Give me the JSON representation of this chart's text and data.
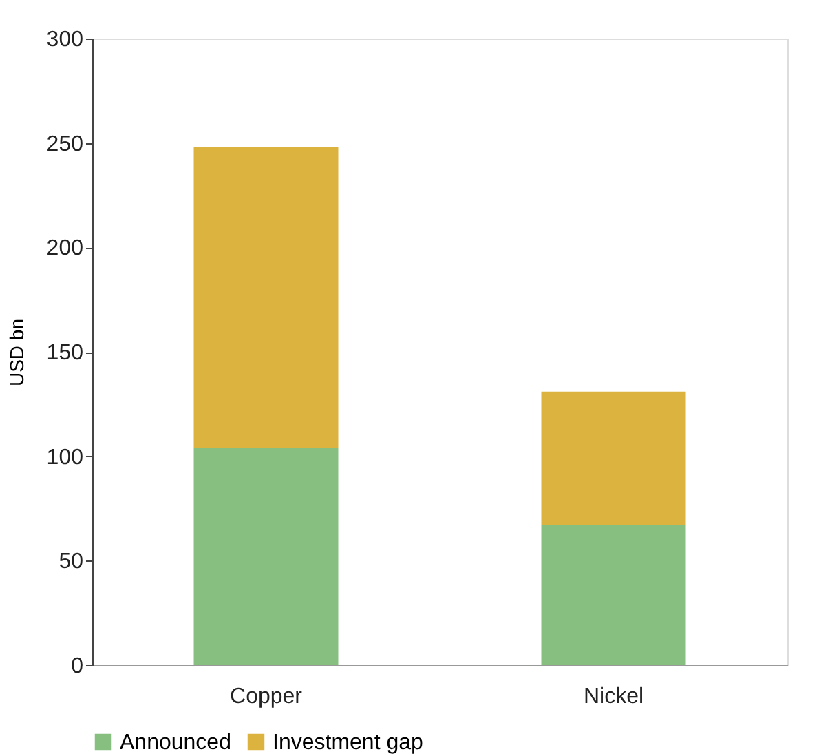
{
  "chart_data": {
    "type": "bar",
    "stacked": true,
    "ylabel": "USD bn",
    "categories": [
      "Copper",
      "Nickel"
    ],
    "series": [
      {
        "name": "Announced",
        "color": "#86bf7f",
        "values": [
          104,
          67
        ]
      },
      {
        "name": "Investment gap",
        "color": "#dcb33f",
        "values": [
          144,
          64
        ]
      }
    ],
    "ylim": [
      0,
      300
    ],
    "yticks": [
      0,
      50,
      100,
      150,
      200,
      250,
      300
    ],
    "grid": false,
    "legend": "bottom"
  }
}
